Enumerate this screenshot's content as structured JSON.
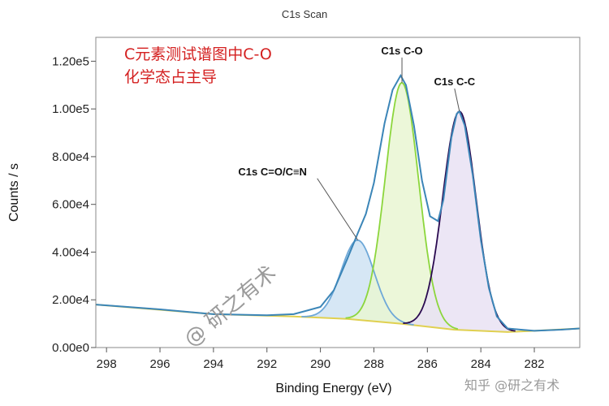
{
  "chart_data": {
    "type": "line",
    "title": "C1s Scan",
    "xlabel": "Binding Energy (eV)",
    "ylabel": "Counts / s",
    "x_reversed": true,
    "xlim": [
      298.4,
      280.3
    ],
    "ylim": [
      0,
      130000
    ],
    "x_ticks": [
      298,
      296,
      294,
      292,
      290,
      288,
      286,
      284,
      282
    ],
    "y_ticks": [
      {
        "value": 0,
        "label": "0.00e0"
      },
      {
        "value": 20000,
        "label": "2.00e4"
      },
      {
        "value": 40000,
        "label": "4.00e4"
      },
      {
        "value": 60000,
        "label": "6.00e4"
      },
      {
        "value": 80000,
        "label": "8.00e4"
      },
      {
        "value": 100000,
        "label": "1.00e5"
      },
      {
        "value": 120000,
        "label": "1.20e5"
      }
    ],
    "grid": false,
    "background": {
      "x": [
        298.4,
        294,
        291,
        289,
        287,
        285,
        283,
        282,
        280.3
      ],
      "y": [
        18000,
        14000,
        13000,
        12000,
        10000,
        7500,
        6500,
        7000,
        8000
      ]
    },
    "peaks": [
      {
        "name": "C1s C=O/C≡N",
        "center": 288.6,
        "height": 45000,
        "color": "#6ea8d8",
        "fill": "#cfe3f3"
      },
      {
        "name": "C1s C-O",
        "center": 286.95,
        "height": 111000,
        "color": "#8cd63c",
        "fill": "#e9f6d2"
      },
      {
        "name": "C1s C-C",
        "center": 284.8,
        "height": 99000,
        "color": "#2a0a50",
        "fill": "#e9e2f3"
      }
    ],
    "envelope": {
      "x": [
        298.4,
        296,
        294,
        292,
        291,
        290,
        289.5,
        289,
        288.6,
        288.3,
        288,
        287.6,
        287.3,
        287,
        286.8,
        286.5,
        286.2,
        285.9,
        285.6,
        285.4,
        285.1,
        284.9,
        284.8,
        284.6,
        284.3,
        284,
        283.7,
        283.4,
        283,
        282.5,
        282,
        281,
        280.3
      ],
      "y": [
        18000,
        16000,
        14000,
        13500,
        14000,
        17000,
        24000,
        37000,
        48000,
        56000,
        69000,
        94000,
        108000,
        114000,
        110000,
        93000,
        70000,
        55000,
        53000,
        62000,
        88000,
        98000,
        99000,
        93000,
        72000,
        45000,
        25000,
        13000,
        8000,
        7500,
        7000,
        7500,
        8000
      ]
    },
    "peak_labels": [
      {
        "text": "C1s C=O/C≡N",
        "x": 288.6,
        "y": 45000
      },
      {
        "text": "C1s C-O",
        "x": 286.95,
        "y": 111000
      },
      {
        "text": "C1s C-C",
        "x": 284.8,
        "y": 99000
      }
    ],
    "annotation": {
      "lines": [
        "C元素测试谱图中C-O",
        "化学态占主导"
      ],
      "color": "#d42020"
    },
    "watermark": "@ 研之有术",
    "watermark_footer": "知乎 @研之有术"
  }
}
